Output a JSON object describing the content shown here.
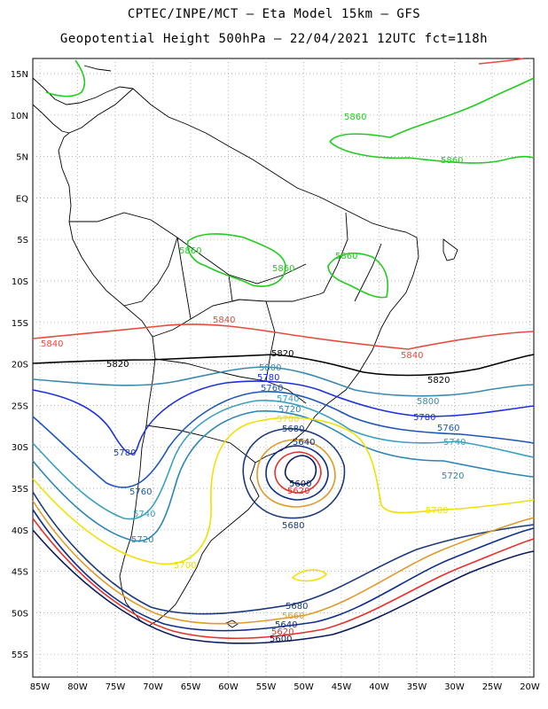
{
  "title_line1": "CPTEC/INPE/MCT –  Eta Model 15km – GFS",
  "title_line2": "Geopotential Height 500hPa – 22/04/2021 12UTC fct=118h",
  "lat_labels": [
    "15N",
    "10N",
    "5N",
    "EQ",
    "5S",
    "10S",
    "15S",
    "20S",
    "25S",
    "30S",
    "35S",
    "40S",
    "45S",
    "50S",
    "55S"
  ],
  "lon_labels": [
    "85W",
    "80W",
    "75W",
    "70W",
    "65W",
    "60W",
    "55W",
    "50W",
    "45W",
    "40W",
    "35W",
    "30W",
    "25W",
    "20W"
  ],
  "contour_colors": {
    "5600": "#0a1a5e",
    "5620": "#e8302a",
    "5640": "#0d2f8c",
    "5660": "#e09a28",
    "5680": "#1b3a7a",
    "5700": "#f2e000",
    "5720": "#2a86b5",
    "5740": "#3aa0c0",
    "5760": "#1c57b8",
    "5780": "#1c30e0",
    "5800": "#3a8ab0",
    "5820": "#000000",
    "5840": "#e84a3c",
    "5860": "#22cc22"
  },
  "contour_labels": [
    {
      "text": "5860",
      "value": "5860"
    },
    {
      "text": "5860",
      "value": "5860"
    },
    {
      "text": "5860",
      "value": "5860"
    },
    {
      "text": "5860",
      "value": "5860"
    },
    {
      "text": "5860",
      "value": "5860"
    },
    {
      "text": "5840",
      "value": "5840"
    },
    {
      "text": "5840",
      "value": "5840"
    },
    {
      "text": "5840",
      "value": "5840"
    },
    {
      "text": "5820",
      "value": "5820"
    },
    {
      "text": "5820",
      "value": "5820"
    },
    {
      "text": "5820",
      "value": "5820"
    },
    {
      "text": "5800",
      "value": "5800"
    },
    {
      "text": "5800",
      "value": "5800"
    },
    {
      "text": "5780",
      "value": "5780"
    },
    {
      "text": "5780",
      "value": "5780"
    },
    {
      "text": "5780",
      "value": "5780"
    },
    {
      "text": "5760",
      "value": "5760"
    },
    {
      "text": "5760",
      "value": "5760"
    },
    {
      "text": "5760",
      "value": "5760"
    },
    {
      "text": "5740",
      "value": "5740"
    },
    {
      "text": "5740",
      "value": "5740"
    },
    {
      "text": "5740",
      "value": "5740"
    },
    {
      "text": "5720",
      "value": "5720"
    },
    {
      "text": "5720",
      "value": "5720"
    },
    {
      "text": "5720",
      "value": "5720"
    },
    {
      "text": "5700",
      "value": "5700"
    },
    {
      "text": "5700",
      "value": "5700"
    },
    {
      "text": "5700",
      "value": "5700"
    },
    {
      "text": "5680",
      "value": "5680"
    },
    {
      "text": "5680",
      "value": "5680"
    },
    {
      "text": "5680",
      "value": "5680"
    },
    {
      "text": "5660",
      "value": "5660"
    },
    {
      "text": "5640",
      "value": "5640"
    },
    {
      "text": "5640",
      "value": "5640"
    },
    {
      "text": "5620",
      "value": "5620"
    },
    {
      "text": "5620",
      "value": "5620"
    },
    {
      "text": "5600",
      "value": "5600"
    },
    {
      "text": "5600",
      "value": "5600"
    }
  ]
}
